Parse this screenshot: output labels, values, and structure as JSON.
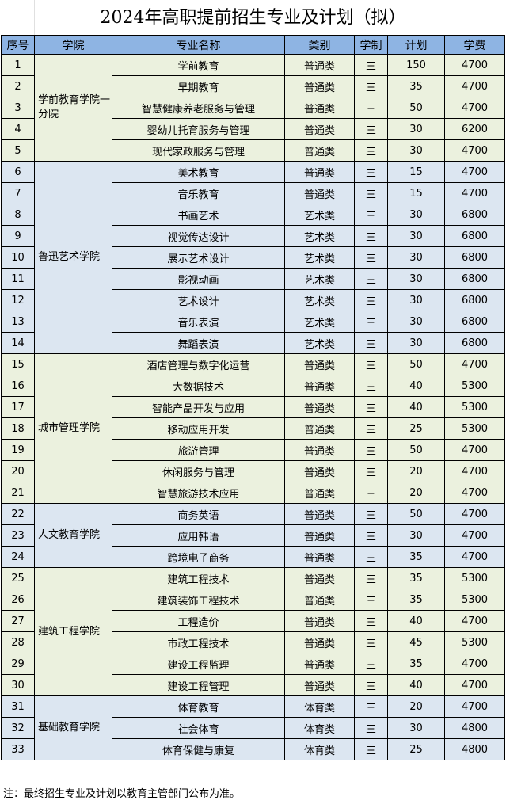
{
  "title": "2024年高职提前招生专业及计划（拟）",
  "headers": [
    "序号",
    "学院",
    "专业名称",
    "类别",
    "学制",
    "计划",
    "学费"
  ],
  "colors": {
    "header": "#8eb4e3",
    "group_green": "#ebf1de",
    "group_blue": "#dce6f1"
  },
  "groups": [
    {
      "college": "学前教育学院一分院",
      "rows": [
        [
          "1",
          "学前教育",
          "普通类",
          "三",
          "150",
          "4700"
        ],
        [
          "2",
          "早期教育",
          "普通类",
          "三",
          "35",
          "4700"
        ],
        [
          "3",
          "智慧健康养老服务与管理",
          "普通类",
          "三",
          "50",
          "4700"
        ],
        [
          "4",
          "婴幼儿托育服务与管理",
          "普通类",
          "三",
          "30",
          "6200"
        ],
        [
          "5",
          "现代家政服务与管理",
          "普通类",
          "三",
          "30",
          "4700"
        ]
      ]
    },
    {
      "college": "鲁迅艺术学院",
      "rows": [
        [
          "6",
          "美术教育",
          "普通类",
          "三",
          "15",
          "4700"
        ],
        [
          "7",
          "音乐教育",
          "普通类",
          "三",
          "15",
          "4700"
        ],
        [
          "8",
          "书画艺术",
          "艺术类",
          "三",
          "30",
          "6800"
        ],
        [
          "9",
          "视觉传达设计",
          "艺术类",
          "三",
          "30",
          "6800"
        ],
        [
          "10",
          "展示艺术设计",
          "艺术类",
          "三",
          "30",
          "6800"
        ],
        [
          "11",
          "影视动画",
          "艺术类",
          "三",
          "30",
          "6800"
        ],
        [
          "12",
          "艺术设计",
          "艺术类",
          "三",
          "30",
          "6800"
        ],
        [
          "13",
          "音乐表演",
          "艺术类",
          "三",
          "30",
          "6800"
        ],
        [
          "14",
          "舞蹈表演",
          "艺术类",
          "三",
          "30",
          "6800"
        ]
      ]
    },
    {
      "college": "城市管理学院",
      "rows": [
        [
          "15",
          "酒店管理与数字化运营",
          "普通类",
          "三",
          "50",
          "4700"
        ],
        [
          "16",
          "大数据技术",
          "普通类",
          "三",
          "40",
          "5300"
        ],
        [
          "17",
          "智能产品开发与应用",
          "普通类",
          "三",
          "40",
          "5300"
        ],
        [
          "18",
          "移动应用开发",
          "普通类",
          "三",
          "25",
          "5300"
        ],
        [
          "19",
          "旅游管理",
          "普通类",
          "三",
          "50",
          "4700"
        ],
        [
          "20",
          "休闲服务与管理",
          "普通类",
          "三",
          "20",
          "4700"
        ],
        [
          "21",
          "智慧旅游技术应用",
          "普通类",
          "三",
          "20",
          "4700"
        ]
      ]
    },
    {
      "college": "人文教育学院",
      "rows": [
        [
          "22",
          "商务英语",
          "普通类",
          "三",
          "50",
          "4700"
        ],
        [
          "23",
          "应用韩语",
          "普通类",
          "三",
          "30",
          "4700"
        ],
        [
          "24",
          "跨境电子商务",
          "普通类",
          "三",
          "35",
          "4700"
        ]
      ]
    },
    {
      "college": "建筑工程学院",
      "rows": [
        [
          "25",
          "建筑工程技术",
          "普通类",
          "三",
          "35",
          "5300"
        ],
        [
          "26",
          "建筑装饰工程技术",
          "普通类",
          "三",
          "35",
          "5300"
        ],
        [
          "27",
          "工程造价",
          "普通类",
          "三",
          "40",
          "4700"
        ],
        [
          "28",
          "市政工程技术",
          "普通类",
          "三",
          "45",
          "5300"
        ],
        [
          "29",
          "建设工程监理",
          "普通类",
          "三",
          "35",
          "4700"
        ],
        [
          "30",
          "建设工程管理",
          "普通类",
          "三",
          "40",
          "4700"
        ]
      ]
    },
    {
      "college": "基础教育学院",
      "rows": [
        [
          "31",
          "体育教育",
          "体育类",
          "三",
          "20",
          "4700"
        ],
        [
          "32",
          "社会体育",
          "体育类",
          "三",
          "30",
          "4800"
        ],
        [
          "33",
          "体育保健与康复",
          "体育类",
          "三",
          "25",
          "4800"
        ]
      ]
    }
  ],
  "note": "注：最终招生专业及计划以教育主管部门公布为准。"
}
